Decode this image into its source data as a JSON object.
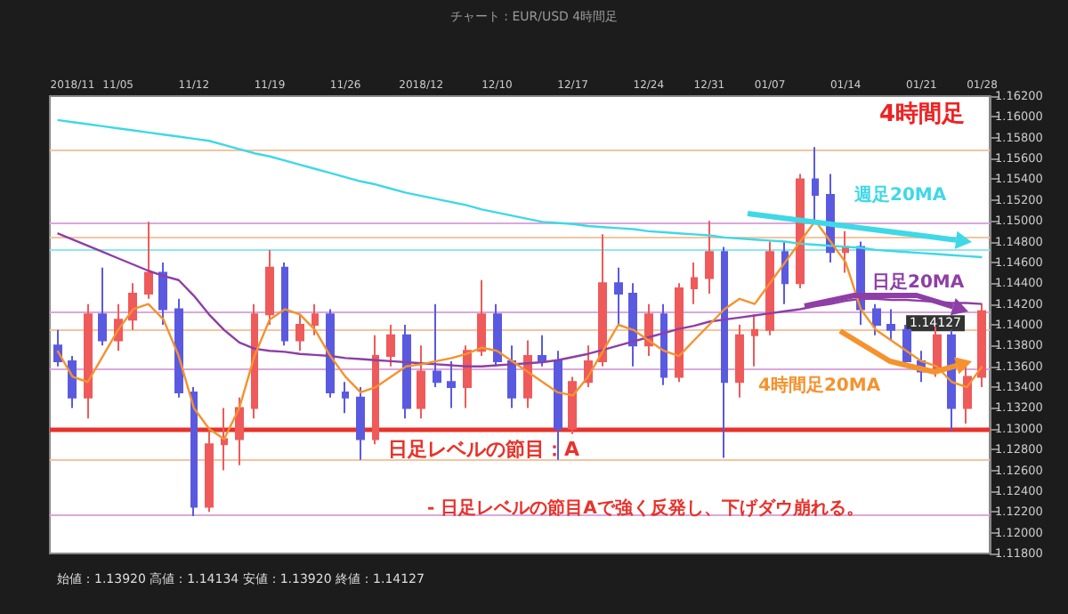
{
  "chart_data": {
    "type": "candlestick",
    "title": "4時間足",
    "subtitle": "チャート : EUR/USD 4時間足",
    "categories": [
      null,
      "2018/11",
      null,
      null,
      "11/05",
      null,
      null,
      null,
      null,
      "11/12",
      null,
      null,
      null,
      null,
      "11/19",
      null,
      null,
      null,
      null,
      "11/26",
      null,
      null,
      null,
      null,
      "2018/12",
      null,
      null,
      null,
      null,
      "12/10",
      null,
      null,
      null,
      null,
      "12/17",
      null,
      null,
      null,
      null,
      "12/24",
      null,
      null,
      null,
      "12/31",
      null,
      null,
      null,
      "01/07",
      null,
      null,
      null,
      null,
      "01/14",
      null,
      null,
      null,
      null,
      "01/21",
      null,
      null,
      null,
      "01/28"
    ],
    "ohlc": [
      [
        1.138,
        1.1395,
        1.136,
        1.1365
      ],
      [
        1.1365,
        1.137,
        1.132,
        1.133
      ],
      [
        1.133,
        1.142,
        1.131,
        1.141
      ],
      [
        1.141,
        1.1455,
        1.138,
        1.1385
      ],
      [
        1.1385,
        1.142,
        1.1375,
        1.1405
      ],
      [
        1.1405,
        1.144,
        1.1395,
        1.143
      ],
      [
        1.143,
        1.1499,
        1.1425,
        1.145
      ],
      [
        1.145,
        1.146,
        1.14,
        1.1415
      ],
      [
        1.1415,
        1.1425,
        1.133,
        1.1335
      ],
      [
        1.1335,
        1.134,
        1.1216,
        1.1225
      ],
      [
        1.1225,
        1.13,
        1.122,
        1.1285
      ],
      [
        1.1285,
        1.132,
        1.126,
        1.129
      ],
      [
        1.129,
        1.133,
        1.1265,
        1.132
      ],
      [
        1.132,
        1.142,
        1.131,
        1.141
      ],
      [
        1.141,
        1.1472,
        1.14,
        1.1455
      ],
      [
        1.1455,
        1.146,
        1.138,
        1.1385
      ],
      [
        1.1385,
        1.141,
        1.1375,
        1.14
      ],
      [
        1.14,
        1.142,
        1.139,
        1.141
      ],
      [
        1.141,
        1.1415,
        1.133,
        1.1335
      ],
      [
        1.1335,
        1.1345,
        1.1315,
        1.133
      ],
      [
        1.133,
        1.134,
        1.127,
        1.129
      ],
      [
        1.129,
        1.139,
        1.1285,
        1.137
      ],
      [
        1.137,
        1.14,
        1.136,
        1.139
      ],
      [
        1.139,
        1.14,
        1.131,
        1.132
      ],
      [
        1.132,
        1.138,
        1.131,
        1.1355
      ],
      [
        1.1355,
        1.142,
        1.134,
        1.1345
      ],
      [
        1.1345,
        1.1365,
        1.132,
        1.134
      ],
      [
        1.134,
        1.138,
        1.132,
        1.1375
      ],
      [
        1.1375,
        1.1443,
        1.137,
        1.141
      ],
      [
        1.141,
        1.142,
        1.136,
        1.1365
      ],
      [
        1.1365,
        1.138,
        1.132,
        1.133
      ],
      [
        1.133,
        1.1385,
        1.132,
        1.137
      ],
      [
        1.137,
        1.139,
        1.136,
        1.1365
      ],
      [
        1.1365,
        1.1375,
        1.127,
        1.13
      ],
      [
        1.13,
        1.135,
        1.1295,
        1.1345
      ],
      [
        1.1345,
        1.138,
        1.134,
        1.1365
      ],
      [
        1.1365,
        1.1487,
        1.136,
        1.144
      ],
      [
        1.144,
        1.1455,
        1.14,
        1.143
      ],
      [
        1.143,
        1.144,
        1.136,
        1.138
      ],
      [
        1.138,
        1.142,
        1.137,
        1.141
      ],
      [
        1.141,
        1.142,
        1.1342,
        1.135
      ],
      [
        1.135,
        1.144,
        1.1345,
        1.1435
      ],
      [
        1.1435,
        1.146,
        1.142,
        1.1445
      ],
      [
        1.1445,
        1.15,
        1.143,
        1.147
      ],
      [
        1.147,
        1.1475,
        1.1272,
        1.1345
      ],
      [
        1.1345,
        1.14,
        1.133,
        1.139
      ],
      [
        1.139,
        1.141,
        1.136,
        1.1395
      ],
      [
        1.1395,
        1.148,
        1.139,
        1.147
      ],
      [
        1.147,
        1.148,
        1.142,
        1.144
      ],
      [
        1.144,
        1.1545,
        1.1435,
        1.154
      ],
      [
        1.154,
        1.1571,
        1.15,
        1.1525
      ],
      [
        1.1525,
        1.1545,
        1.146,
        1.147
      ],
      [
        1.147,
        1.149,
        1.145,
        1.1475
      ],
      [
        1.1475,
        1.148,
        1.14,
        1.1415
      ],
      [
        1.1415,
        1.142,
        1.139,
        1.14
      ],
      [
        1.14,
        1.1415,
        1.1385,
        1.1395
      ],
      [
        1.1395,
        1.14,
        1.136,
        1.1365
      ],
      [
        1.1365,
        1.1375,
        1.1345,
        1.1355
      ],
      [
        1.1355,
        1.1398,
        1.135,
        1.139
      ],
      [
        1.139,
        1.1395,
        1.1298,
        1.132
      ],
      [
        1.132,
        1.136,
        1.1305,
        1.135
      ],
      [
        1.135,
        1.142,
        1.134,
        1.1413
      ]
    ],
    "series": [
      {
        "type": "line",
        "name": "週足20MA",
        "color": "#3fd8e6",
        "values": [
          1.1597,
          1.1595,
          1.1593,
          1.1591,
          1.1589,
          1.1587,
          1.1585,
          1.1583,
          1.1581,
          1.1579,
          1.1577,
          1.1573,
          1.1569,
          1.1565,
          1.1562,
          1.1558,
          1.1554,
          1.155,
          1.1546,
          1.1542,
          1.1538,
          1.1535,
          1.1531,
          1.1527,
          1.1524,
          1.1521,
          1.1518,
          1.1515,
          1.1511,
          1.1508,
          1.1505,
          1.1502,
          1.1499,
          1.1498,
          1.1497,
          1.1495,
          1.1494,
          1.1493,
          1.1492,
          1.149,
          1.1489,
          1.1488,
          1.1487,
          1.1486,
          1.1484,
          1.1483,
          1.1482,
          1.1481,
          1.148,
          1.1478,
          1.1477,
          1.1476,
          1.1475,
          1.1474,
          1.1472,
          1.1471,
          1.147,
          1.1469,
          1.1468,
          1.1467,
          1.1466,
          1.1465
        ]
      },
      {
        "type": "line",
        "name": "日足20MA",
        "color": "#8e3ea6",
        "values": [
          1.1488,
          1.1482,
          1.1476,
          1.147,
          1.1464,
          1.1458,
          1.1452,
          1.1447,
          1.1443,
          1.1428,
          1.141,
          1.1395,
          1.1383,
          1.1377,
          1.1375,
          1.1374,
          1.1372,
          1.1371,
          1.137,
          1.1368,
          1.1367,
          1.1366,
          1.1365,
          1.1364,
          1.1363,
          1.1362,
          1.1361,
          1.136,
          1.136,
          1.1361,
          1.1362,
          1.1363,
          1.1364,
          1.1366,
          1.1369,
          1.1372,
          1.1376,
          1.138,
          1.1384,
          1.1388,
          1.1392,
          1.1396,
          1.1399,
          1.1403,
          1.1405,
          1.1407,
          1.1409,
          1.1411,
          1.1413,
          1.1415,
          1.1418,
          1.142,
          1.1423,
          1.1425,
          1.1425,
          1.1424,
          1.1424,
          1.1423,
          1.1422,
          1.1421,
          1.1421,
          1.142
        ]
      },
      {
        "type": "line",
        "name": "4時間足20MA",
        "color": "#f5922e",
        "values": [
          1.1375,
          1.135,
          1.1345,
          1.137,
          1.1395,
          1.1415,
          1.142,
          1.1405,
          1.137,
          1.132,
          1.13,
          1.129,
          1.132,
          1.137,
          1.1405,
          1.1415,
          1.141,
          1.1395,
          1.137,
          1.135,
          1.1335,
          1.134,
          1.135,
          1.136,
          1.1362,
          1.1365,
          1.1368,
          1.1372,
          1.1378,
          1.1375,
          1.1365,
          1.1355,
          1.1345,
          1.1335,
          1.1332,
          1.135,
          1.1375,
          1.14,
          1.1395,
          1.1385,
          1.1375,
          1.137,
          1.1385,
          1.14,
          1.1415,
          1.1425,
          1.142,
          1.144,
          1.146,
          1.148,
          1.15,
          1.148,
          1.146,
          1.1415,
          1.1395,
          1.1385,
          1.1375,
          1.1365,
          1.136,
          1.1345,
          1.134,
          1.136
        ]
      }
    ],
    "ylim": [
      1.118,
      1.162
    ],
    "yticks": [
      {
        "value": 1.118,
        "label": "1.11800"
      },
      {
        "value": 1.12,
        "label": "1.12000"
      },
      {
        "value": 1.122,
        "label": "1.12200"
      },
      {
        "value": 1.124,
        "label": "1.12400"
      },
      {
        "value": 1.126,
        "label": "1.12600"
      },
      {
        "value": 1.128,
        "label": "1.12800"
      },
      {
        "value": 1.13,
        "label": "1.13000"
      },
      {
        "value": 1.132,
        "label": "1.13200"
      },
      {
        "value": 1.134,
        "label": "1.13400"
      },
      {
        "value": 1.136,
        "label": "1.13600"
      },
      {
        "value": 1.138,
        "label": "1.13800"
      },
      {
        "value": 1.14,
        "label": "1.14000"
      },
      {
        "value": 1.142,
        "label": "1.14200"
      },
      {
        "value": 1.144,
        "label": "1.14400"
      },
      {
        "value": 1.146,
        "label": "1.14600"
      },
      {
        "value": 1.148,
        "label": "1.14800"
      },
      {
        "value": 1.15,
        "label": "1.15000"
      },
      {
        "value": 1.152,
        "label": "1.15200"
      },
      {
        "value": 1.154,
        "label": "1.15400"
      },
      {
        "value": 1.156,
        "label": "1.15600"
      },
      {
        "value": 1.158,
        "label": "1.15800"
      },
      {
        "value": 1.16,
        "label": "1.16000"
      },
      {
        "value": 1.162,
        "label": "1.16200"
      }
    ],
    "ref_lines": [
      {
        "axis": "y",
        "value": 1.13,
        "label": "日足レベルの節目：A",
        "color": "#e8322a"
      },
      {
        "axis": "y",
        "value": 1.1569,
        "color": "#f6c4a0"
      },
      {
        "axis": "y",
        "value": 1.1498,
        "color": "#dba8dc"
      },
      {
        "axis": "y",
        "value": 1.1484,
        "color": "#f6c4a0"
      },
      {
        "axis": "y",
        "value": 1.1472,
        "color": "#8ee8ea"
      },
      {
        "axis": "y",
        "value": 1.1395,
        "color": "#f6c4a0"
      },
      {
        "axis": "y",
        "value": 1.1358,
        "color": "#dba8dc"
      },
      {
        "axis": "y",
        "value": 1.127,
        "color": "#f6c4a0"
      },
      {
        "axis": "y",
        "value": 1.1217,
        "color": "#dba8dc"
      },
      {
        "axis": "y",
        "value": 1.14127,
        "label": "1.14127",
        "color": "#dba8dc"
      }
    ],
    "annotations": [
      "- 日足レベルの節目Aで強く反発し、下げダウ崩れる。",
      "始値：1.13920 高値：1.14134 安値：1.13920 終値：1.14127"
    ]
  }
}
